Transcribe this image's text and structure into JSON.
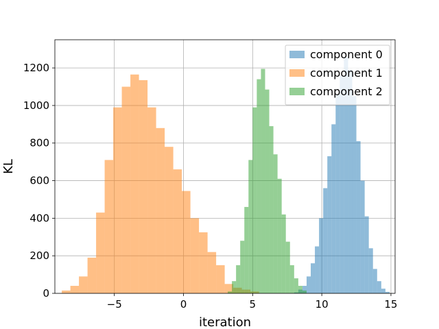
{
  "chart_data": {
    "type": "bar",
    "title": "",
    "xlabel": "iteration",
    "ylabel": "KL",
    "xlim": [
      -9.3,
      15.3
    ],
    "ylim": [
      0,
      1350
    ],
    "xticks": [
      -5,
      0,
      5,
      10,
      15
    ],
    "yticks": [
      0,
      200,
      400,
      600,
      800,
      1000,
      1200
    ],
    "grid": true,
    "legend_position": "top-right",
    "series": [
      {
        "name": "component 0",
        "color": "#1f77b4",
        "opacity": 0.5,
        "bin_start": 8.0,
        "bin_width": 0.3,
        "values": [
          5,
          20,
          40,
          90,
          160,
          250,
          400,
          560,
          730,
          900,
          1060,
          1160,
          1255,
          1190,
          1050,
          810,
          600,
          410,
          240,
          130,
          65,
          25,
          8
        ]
      },
      {
        "name": "component 1",
        "color": "#ff7f0e",
        "opacity": 0.5,
        "bin_start": -8.8,
        "bin_width": 0.62,
        "values": [
          15,
          40,
          90,
          190,
          430,
          710,
          990,
          1100,
          1165,
          1135,
          990,
          880,
          780,
          660,
          545,
          400,
          325,
          220,
          150,
          50,
          30,
          20,
          10
        ]
      },
      {
        "name": "component 2",
        "color": "#2ca02c",
        "opacity": 0.5,
        "bin_start": 3.2,
        "bin_width": 0.3,
        "values": [
          10,
          65,
          150,
          280,
          460,
          710,
          990,
          1140,
          1195,
          1085,
          890,
          740,
          610,
          420,
          275,
          150,
          80,
          40,
          15
        ]
      }
    ]
  }
}
